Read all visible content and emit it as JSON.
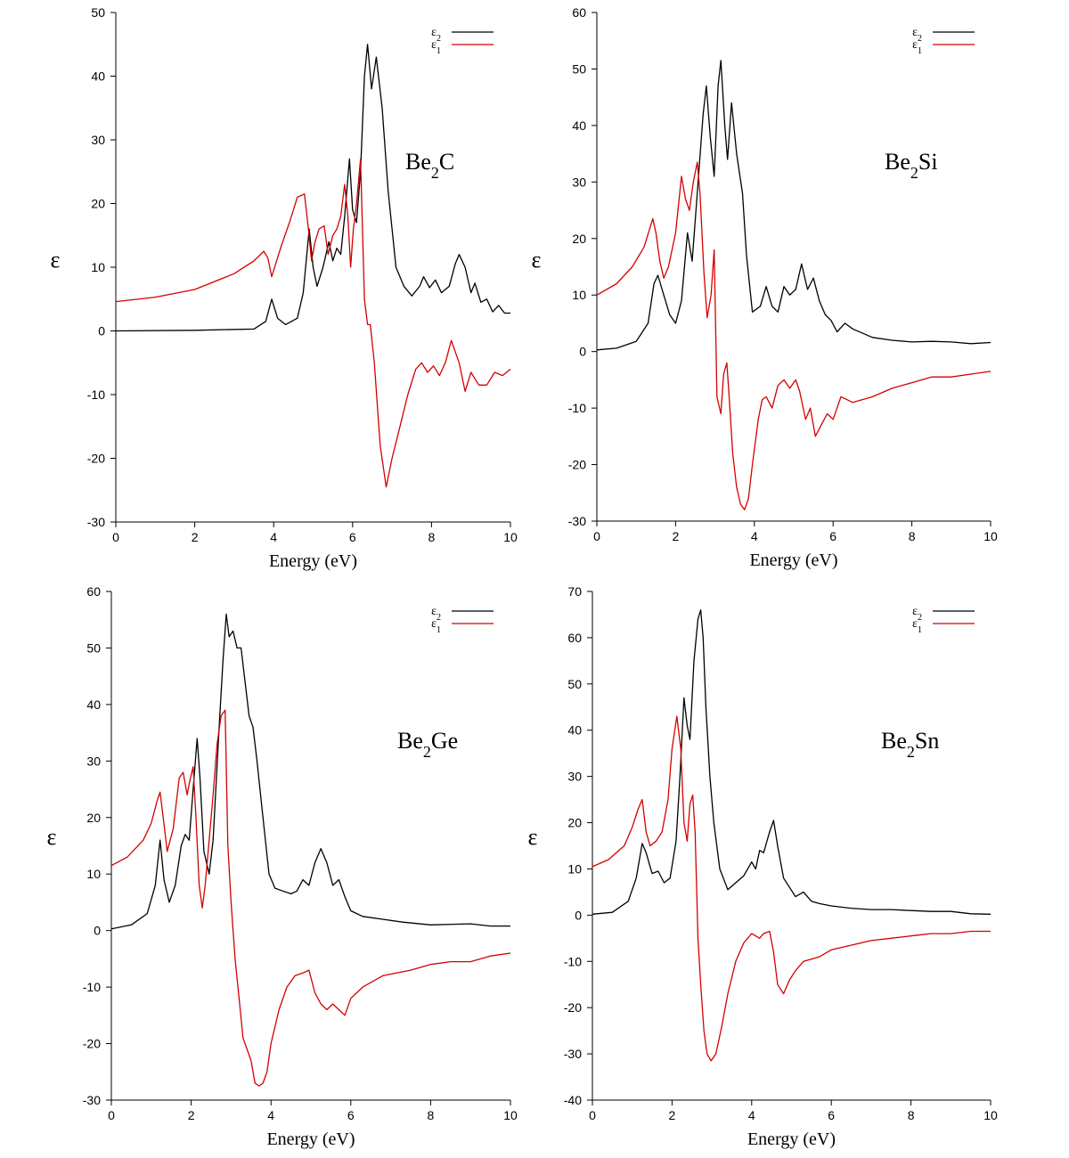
{
  "chart_data": [
    {
      "type": "line",
      "label": {
        "base": "Be",
        "sub": "2",
        "tail": "C"
      },
      "xlabel": "Energy (eV)",
      "ylabel": "ε",
      "xlim": [
        0,
        10
      ],
      "ylim": [
        -30,
        50
      ],
      "xticks": [
        0,
        2,
        4,
        6,
        8,
        10
      ],
      "yticks": [
        -30,
        -20,
        -10,
        0,
        10,
        20,
        30,
        40,
        50
      ],
      "series": [
        {
          "name": "ε2",
          "sym": "ε",
          "sub": "2",
          "color": "#000000",
          "x": [
            0,
            2,
            3.5,
            3.8,
            3.95,
            4.1,
            4.3,
            4.6,
            4.75,
            4.9,
            5.0,
            5.1,
            5.25,
            5.4,
            5.5,
            5.6,
            5.7,
            5.8,
            5.92,
            6.0,
            6.1,
            6.2,
            6.3,
            6.38,
            6.48,
            6.6,
            6.75,
            6.9,
            7.1,
            7.3,
            7.5,
            7.7,
            7.8,
            7.95,
            8.1,
            8.25,
            8.45,
            8.6,
            8.7,
            8.85,
            9.0,
            9.1,
            9.25,
            9.4,
            9.55,
            9.7,
            9.85,
            10
          ],
          "y": [
            0,
            0.1,
            0.3,
            1.5,
            5,
            2,
            1,
            2,
            6,
            16,
            10,
            7,
            10,
            14,
            11,
            13,
            12,
            18,
            27,
            19,
            17,
            25,
            40,
            45,
            38,
            43,
            35,
            22,
            10,
            7,
            5.5,
            7,
            8.5,
            6.8,
            8,
            6,
            7,
            10.5,
            12,
            10,
            6,
            7.5,
            4.5,
            5,
            3,
            4,
            2.8,
            2.8
          ]
        },
        {
          "name": "ε1",
          "sym": "ε",
          "sub": "1",
          "color": "#d40000",
          "x": [
            0,
            1,
            2,
            3,
            3.5,
            3.75,
            3.85,
            3.95,
            4.05,
            4.2,
            4.4,
            4.6,
            4.78,
            4.88,
            4.96,
            5.05,
            5.15,
            5.28,
            5.38,
            5.5,
            5.6,
            5.7,
            5.8,
            5.88,
            5.95,
            6.02,
            6.1,
            6.2,
            6.3,
            6.38,
            6.45,
            6.55,
            6.7,
            6.85,
            7.0,
            7.2,
            7.4,
            7.6,
            7.75,
            7.9,
            8.05,
            8.2,
            8.35,
            8.5,
            8.7,
            8.85,
            9.0,
            9.2,
            9.4,
            9.6,
            9.8,
            10
          ],
          "y": [
            4.6,
            5.3,
            6.5,
            9,
            11,
            12.5,
            11.5,
            8.5,
            10.5,
            13.5,
            17,
            21,
            21.5,
            16,
            11,
            14,
            16,
            16.5,
            12,
            15,
            16,
            18,
            23,
            18,
            10,
            16,
            20,
            27,
            5,
            1,
            1,
            -5,
            -18,
            -24.5,
            -20,
            -15,
            -10,
            -6,
            -5,
            -6.5,
            -5.5,
            -7,
            -5,
            -1.5,
            -5,
            -9.5,
            -6.5,
            -8.5,
            -8.5,
            -6.5,
            -7,
            -6
          ]
        }
      ]
    },
    {
      "type": "line",
      "label": {
        "base": "Be",
        "sub": "2",
        "tail": "Si"
      },
      "xlabel": "Energy (eV)",
      "ylabel": "ε",
      "xlim": [
        0,
        10
      ],
      "ylim": [
        -30,
        60
      ],
      "xticks": [
        0,
        2,
        4,
        6,
        8,
        10
      ],
      "yticks": [
        -30,
        -20,
        -10,
        0,
        10,
        20,
        30,
        40,
        50,
        60
      ],
      "series": [
        {
          "name": "ε2",
          "sym": "ε",
          "sub": "2",
          "color": "#000000",
          "x": [
            0,
            0.5,
            1.0,
            1.3,
            1.45,
            1.55,
            1.7,
            1.85,
            2.0,
            2.15,
            2.3,
            2.42,
            2.55,
            2.7,
            2.78,
            2.88,
            2.98,
            3.08,
            3.15,
            3.25,
            3.32,
            3.42,
            3.55,
            3.7,
            3.8,
            3.95,
            4.15,
            4.3,
            4.45,
            4.6,
            4.75,
            4.9,
            5.05,
            5.2,
            5.35,
            5.5,
            5.65,
            5.8,
            5.95,
            6.1,
            6.3,
            6.5,
            7.0,
            7.5,
            8.0,
            8.5,
            9.0,
            9.5,
            10
          ],
          "y": [
            0.3,
            0.6,
            1.8,
            5,
            12,
            13.5,
            10,
            6.5,
            5,
            9,
            21,
            16,
            28,
            42,
            47,
            38,
            31,
            47,
            51.5,
            40,
            34,
            44,
            35,
            28,
            17,
            7,
            8,
            11.5,
            8,
            7,
            11.5,
            10,
            11,
            15.5,
            11,
            13,
            9,
            6.5,
            5.5,
            3.5,
            5,
            4,
            2.5,
            2,
            1.7,
            1.8,
            1.7,
            1.4,
            1.6
          ]
        },
        {
          "name": "ε1",
          "sym": "ε",
          "sub": "1",
          "color": "#d40000",
          "x": [
            0,
            0.5,
            0.9,
            1.2,
            1.42,
            1.5,
            1.6,
            1.7,
            1.82,
            2.0,
            2.15,
            2.25,
            2.35,
            2.45,
            2.55,
            2.62,
            2.72,
            2.8,
            2.9,
            2.98,
            3.05,
            3.15,
            3.22,
            3.3,
            3.35,
            3.45,
            3.55,
            3.65,
            3.75,
            3.85,
            3.95,
            4.1,
            4.2,
            4.3,
            4.45,
            4.6,
            4.75,
            4.9,
            5.05,
            5.15,
            5.3,
            5.42,
            5.55,
            5.7,
            5.85,
            6.0,
            6.2,
            6.5,
            7.0,
            7.5,
            8.0,
            8.5,
            9.0,
            9.5,
            10
          ],
          "y": [
            10,
            12,
            15,
            18.5,
            23.5,
            21,
            16,
            13,
            15,
            21,
            31,
            27,
            25,
            30,
            33.5,
            28,
            14,
            6,
            10,
            18,
            -8,
            -11,
            -4,
            -2,
            -7,
            -18,
            -24,
            -27,
            -28,
            -26,
            -20,
            -12,
            -8.5,
            -8,
            -10,
            -6,
            -5,
            -6.5,
            -5,
            -7,
            -12,
            -10,
            -15,
            -13,
            -11,
            -12,
            -8,
            -9,
            -8,
            -6.5,
            -5.5,
            -4.5,
            -4.5,
            -4,
            -3.5
          ]
        }
      ]
    },
    {
      "type": "line",
      "label": {
        "base": "Be",
        "sub": "2",
        "tail": "Ge"
      },
      "xlabel": "Energy (eV)",
      "ylabel": "ε",
      "xlim": [
        0,
        10
      ],
      "ylim": [
        -30,
        60
      ],
      "xticks": [
        0,
        2,
        4,
        6,
        8,
        10
      ],
      "yticks": [
        -30,
        -20,
        -10,
        0,
        10,
        20,
        30,
        40,
        50,
        60
      ],
      "series": [
        {
          "name": "ε2",
          "sym": "ε",
          "sub": "2",
          "color": "#000000",
          "x": [
            0,
            0.5,
            0.9,
            1.1,
            1.22,
            1.32,
            1.45,
            1.6,
            1.75,
            1.85,
            1.95,
            2.05,
            2.15,
            2.22,
            2.32,
            2.45,
            2.55,
            2.7,
            2.8,
            2.88,
            2.95,
            3.05,
            3.15,
            3.25,
            3.35,
            3.45,
            3.55,
            3.65,
            3.8,
            3.95,
            4.1,
            4.3,
            4.5,
            4.65,
            4.8,
            4.95,
            5.1,
            5.25,
            5.4,
            5.55,
            5.7,
            5.85,
            6.0,
            6.3,
            6.8,
            7.3,
            8.0,
            9.0,
            9.5,
            10
          ],
          "y": [
            0.3,
            1,
            3,
            8,
            16,
            9,
            5,
            8,
            15,
            17,
            16,
            25,
            34,
            27,
            14,
            10,
            16,
            36,
            48,
            56,
            52,
            53,
            50,
            50,
            44,
            38,
            36,
            30,
            20,
            10,
            7.5,
            7,
            6.5,
            7,
            9,
            8,
            12,
            14.5,
            12,
            8,
            9,
            6,
            3.5,
            2.5,
            2,
            1.5,
            1,
            1.2,
            0.8,
            0.8
          ]
        },
        {
          "name": "ε1",
          "sym": "ε",
          "sub": "1",
          "color": "#d40000",
          "x": [
            0,
            0.4,
            0.8,
            1.0,
            1.15,
            1.22,
            1.3,
            1.4,
            1.55,
            1.7,
            1.8,
            1.9,
            1.95,
            2.05,
            2.12,
            2.2,
            2.28,
            2.35,
            2.45,
            2.55,
            2.65,
            2.75,
            2.85,
            2.92,
            3.0,
            3.1,
            3.2,
            3.3,
            3.4,
            3.5,
            3.6,
            3.7,
            3.8,
            3.9,
            4.0,
            4.2,
            4.4,
            4.6,
            4.8,
            4.95,
            5.1,
            5.25,
            5.4,
            5.55,
            5.7,
            5.85,
            6.0,
            6.3,
            6.8,
            7.5,
            8.0,
            8.5,
            9.0,
            9.5,
            10
          ],
          "y": [
            11.5,
            13,
            16,
            19,
            23,
            24.5,
            20,
            14,
            18,
            27,
            28,
            24,
            26,
            29,
            20,
            8,
            4,
            8,
            16,
            24,
            33,
            38,
            39,
            15,
            5,
            -5,
            -12,
            -19,
            -21,
            -23,
            -27,
            -27.5,
            -27,
            -25,
            -20,
            -14,
            -10,
            -8,
            -7.5,
            -7,
            -11,
            -13,
            -14,
            -13,
            -14,
            -15,
            -12,
            -10,
            -8,
            -7,
            -6,
            -5.5,
            -5.5,
            -4.5,
            -4
          ]
        }
      ]
    },
    {
      "type": "line",
      "label": {
        "base": "Be",
        "sub": "2",
        "tail": "Sn"
      },
      "xlabel": "Energy (eV)",
      "ylabel": "ε",
      "xlim": [
        0,
        10
      ],
      "ylim": [
        -40,
        70
      ],
      "xticks": [
        0,
        2,
        4,
        6,
        8,
        10
      ],
      "yticks": [
        -40,
        -30,
        -20,
        -10,
        0,
        10,
        20,
        30,
        40,
        50,
        60,
        70
      ],
      "series": [
        {
          "name": "ε2",
          "sym": "ε",
          "sub": "2",
          "color": "#000000",
          "x": [
            0,
            0.5,
            0.9,
            1.1,
            1.25,
            1.35,
            1.5,
            1.65,
            1.8,
            1.95,
            2.1,
            2.2,
            2.3,
            2.38,
            2.45,
            2.55,
            2.65,
            2.72,
            2.78,
            2.85,
            2.95,
            3.05,
            3.2,
            3.4,
            3.6,
            3.8,
            4.0,
            4.1,
            4.2,
            4.3,
            4.45,
            4.55,
            4.65,
            4.8,
            4.95,
            5.1,
            5.3,
            5.5,
            5.7,
            6.0,
            6.5,
            7.0,
            7.5,
            8.0,
            8.5,
            9.0,
            9.5,
            10
          ],
          "y": [
            0.2,
            0.6,
            3,
            8,
            15.5,
            13.5,
            9,
            9.5,
            7,
            8,
            16,
            30,
            47,
            41,
            38,
            55,
            64,
            66,
            60,
            45,
            30,
            20,
            10,
            5.5,
            7,
            8.5,
            11.5,
            10,
            14,
            13.5,
            18,
            20.5,
            15,
            8,
            6,
            4,
            5,
            3,
            2.5,
            2,
            1.5,
            1.2,
            1.2,
            1,
            0.8,
            0.8,
            0.3,
            0.2
          ]
        },
        {
          "name": "ε1",
          "sym": "ε",
          "sub": "1",
          "color": "#d40000",
          "x": [
            0,
            0.4,
            0.8,
            1.0,
            1.15,
            1.25,
            1.35,
            1.45,
            1.6,
            1.75,
            1.9,
            2.0,
            2.12,
            2.22,
            2.3,
            2.38,
            2.45,
            2.52,
            2.58,
            2.65,
            2.72,
            2.8,
            2.88,
            2.98,
            3.1,
            3.25,
            3.4,
            3.6,
            3.8,
            4.0,
            4.2,
            4.3,
            4.45,
            4.55,
            4.65,
            4.8,
            4.95,
            5.1,
            5.3,
            5.5,
            5.7,
            6.0,
            6.5,
            7.0,
            7.5,
            8.0,
            8.5,
            9.0,
            9.5,
            10
          ],
          "y": [
            10.5,
            12,
            15,
            19,
            23,
            25,
            18,
            15,
            16,
            18,
            25,
            36,
            43,
            36,
            20,
            16,
            24,
            26,
            18,
            -5,
            -15,
            -25,
            -30,
            -31.5,
            -30,
            -24,
            -17,
            -10,
            -6,
            -4,
            -5,
            -4,
            -3.5,
            -8,
            -15,
            -17,
            -14,
            -12,
            -10,
            -9.5,
            -9,
            -7.5,
            -6.5,
            -5.5,
            -5,
            -4.5,
            -4,
            -4,
            -3.5,
            -3.5
          ]
        }
      ]
    }
  ]
}
